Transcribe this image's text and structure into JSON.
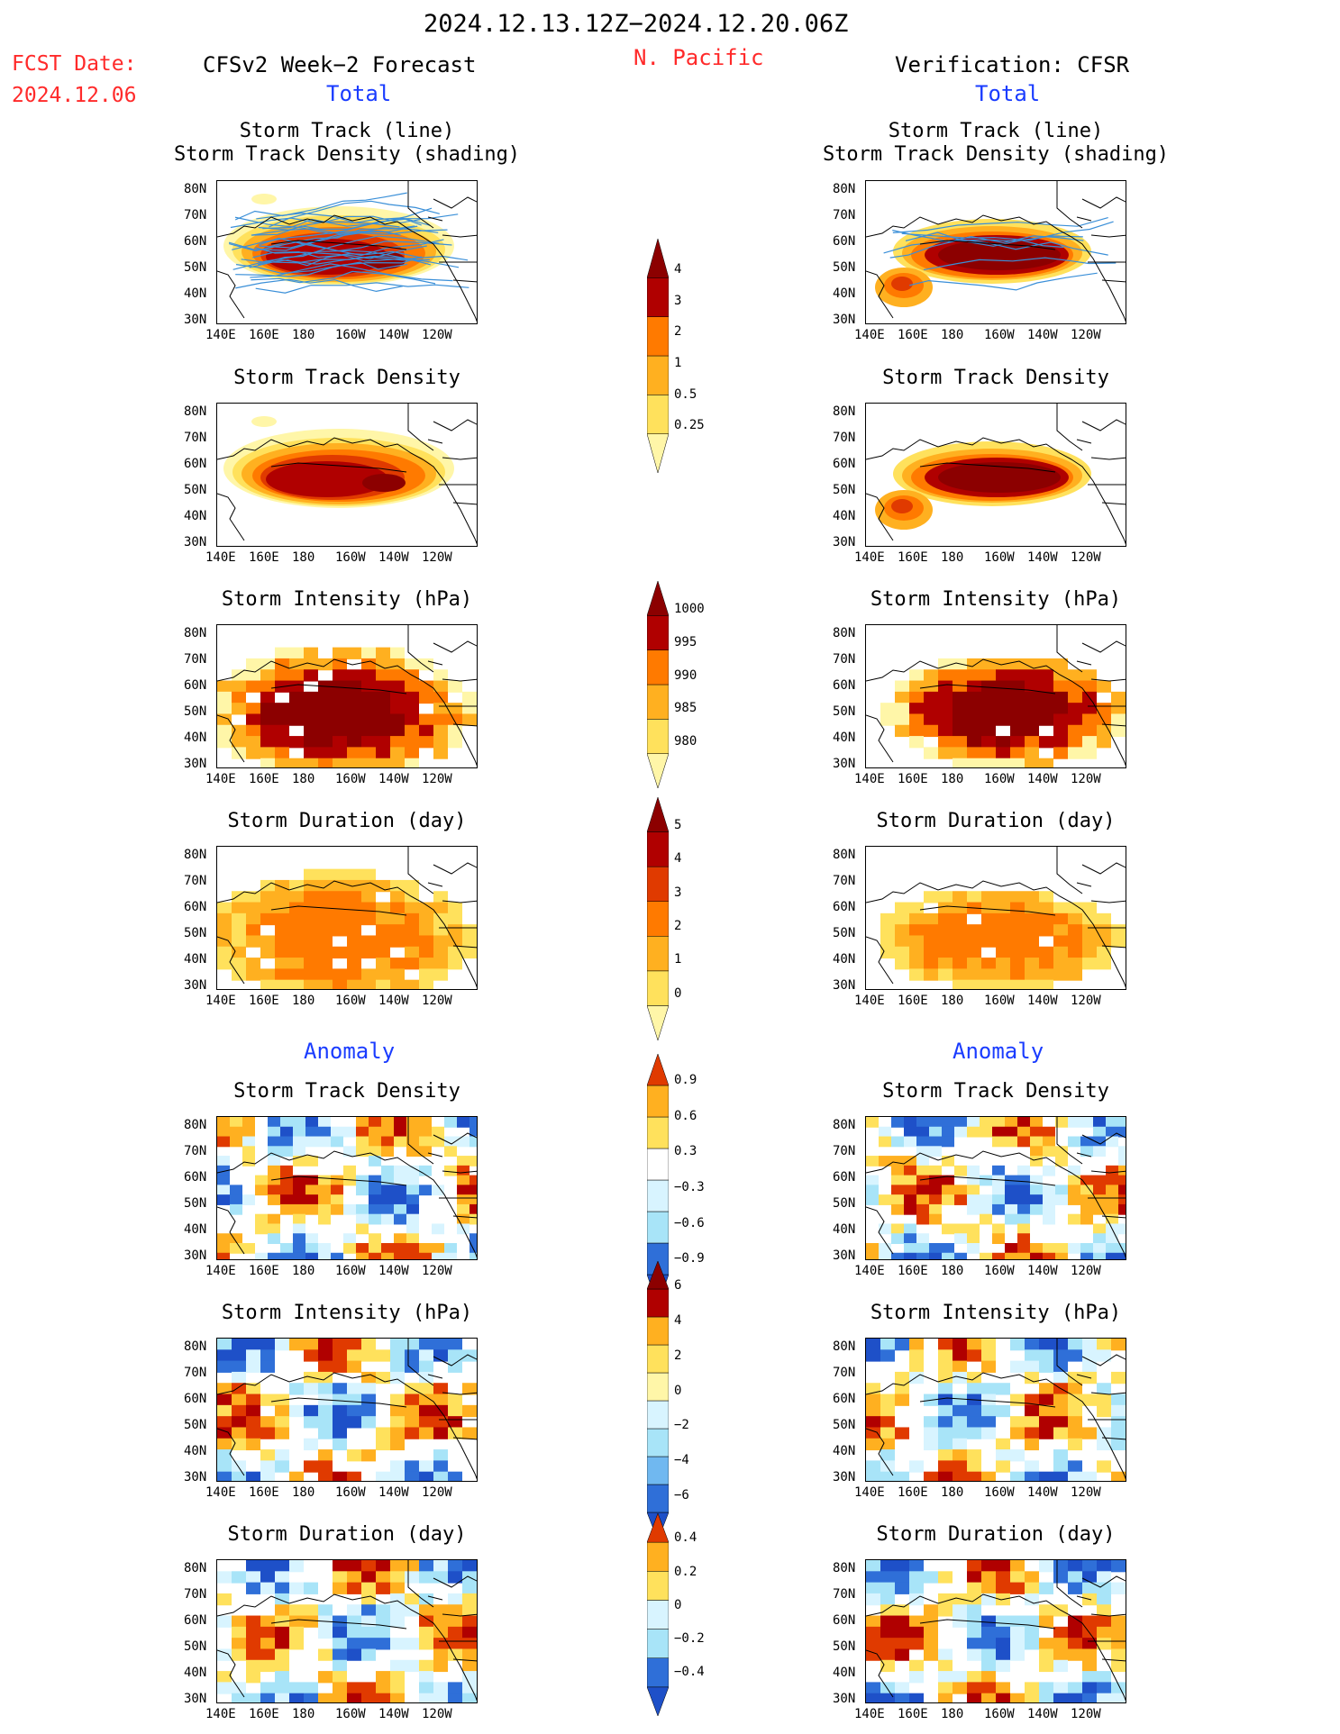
{
  "header": {
    "period": "2024.12.13.12Z−2024.12.20.06Z",
    "fcst_label": "FCST Date:",
    "fcst_date": "2024.12.06",
    "left_title": "CFSv2 Week−2 Forecast",
    "region": "N. Pacific",
    "right_title": "Verification: CFSR"
  },
  "sections": {
    "total": "Total",
    "anomaly": "Anomaly"
  },
  "panel_titles": {
    "track_line": "Storm Track (line)",
    "track_shading": "Storm Track Density (shading)",
    "density": "Storm Track Density",
    "intensity": "Storm Intensity (hPa)",
    "duration": "Storm Duration (day)"
  },
  "axes": {
    "lat": [
      "80N",
      "70N",
      "60N",
      "50N",
      "40N",
      "30N"
    ],
    "lon": [
      "140E",
      "160E",
      "180",
      "160W",
      "140W",
      "120W"
    ]
  },
  "colorbars": {
    "density_total": [
      "4",
      "3",
      "2",
      "1",
      "0.5",
      "0.25"
    ],
    "intensity_total": [
      "1000",
      "995",
      "990",
      "985",
      "980"
    ],
    "duration_total": [
      "5",
      "4",
      "3",
      "2",
      "1",
      "0"
    ],
    "density_anom": [
      "0.9",
      "0.6",
      "0.3",
      "−0.3",
      "−0.6",
      "−0.9"
    ],
    "intensity_anom": [
      "6",
      "4",
      "2",
      "0",
      "−2",
      "−4",
      "−6"
    ],
    "duration_anom": [
      "0.4",
      "0.2",
      "0",
      "−0.2",
      "−0.4"
    ]
  },
  "colors": {
    "warm": [
      "#fff6a8",
      "#ffe15c",
      "#ffb020",
      "#ff7a00",
      "#e03a00",
      "#b00000",
      "#8c0000"
    ],
    "cool": [
      "#d8f4ff",
      "#a8e4f8",
      "#70b8f0",
      "#2f6fd8",
      "#1e50c8"
    ],
    "track_line": "#3a8fd8"
  }
}
